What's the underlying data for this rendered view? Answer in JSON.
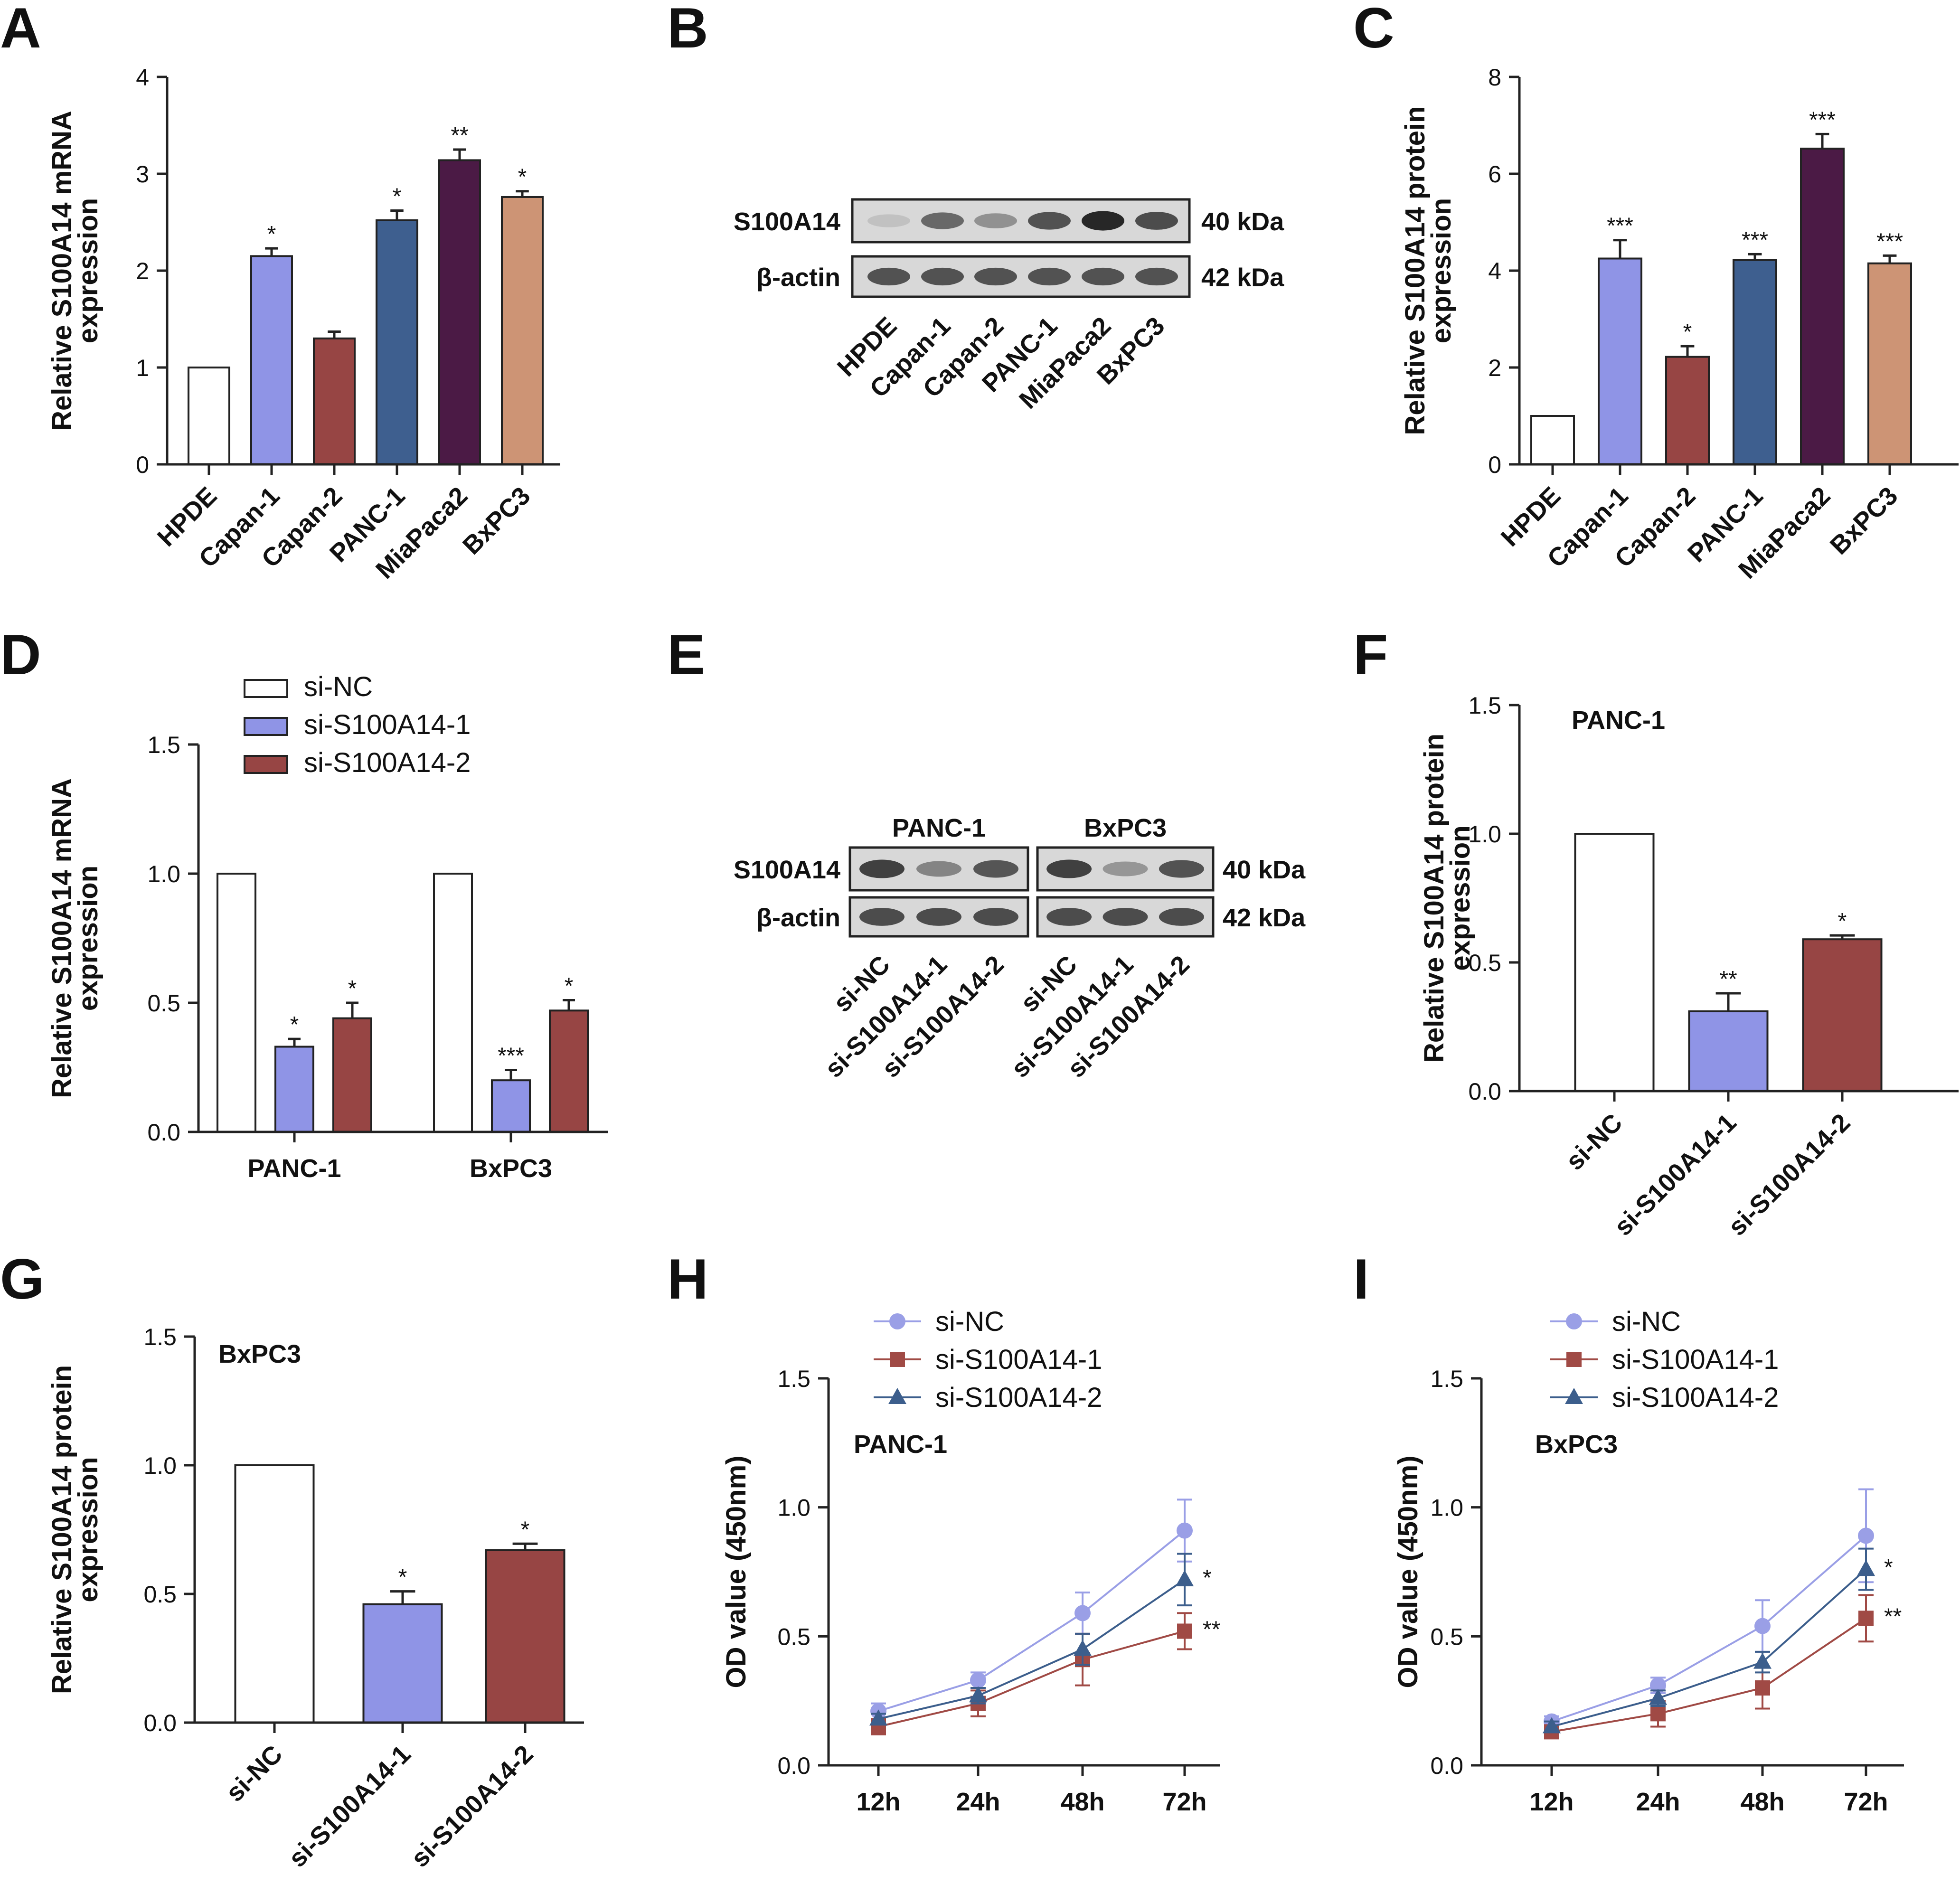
{
  "colors": {
    "white_bar": "#ffffff",
    "lavender": "#8f94e6",
    "brick": "#974544",
    "steel": "#3e5f8f",
    "plum": "#4b1a45",
    "tan": "#cd9475",
    "line_nc": "#9a9fe6",
    "line_1": "#a04a45",
    "line_2": "#3c5e8c",
    "band_dark": "#1e1e1e"
  },
  "chart_data": [
    {
      "panel": "A",
      "type": "bar",
      "ylabel": [
        "Relative S100A14 mRNA",
        "expression"
      ],
      "ylim": [
        0,
        4
      ],
      "yticks": [
        "0",
        "1",
        "2",
        "3",
        "4"
      ],
      "categories": [
        "HPDE",
        "Capan-1",
        "Capan-2",
        "PANC-1",
        "MiaPaca2",
        "BxPC3"
      ],
      "values": [
        1.0,
        2.15,
        1.3,
        2.52,
        3.14,
        2.76
      ],
      "errors": [
        0,
        0.08,
        0.07,
        0.1,
        0.11,
        0.06
      ],
      "sig": [
        "",
        "*",
        "",
        "*",
        "**",
        "*"
      ],
      "bar_colors": [
        "white_bar",
        "lavender",
        "brick",
        "steel",
        "plum",
        "tan"
      ]
    },
    {
      "panel": "C",
      "type": "bar",
      "ylabel": [
        "Relative S100A14 protein",
        "expression"
      ],
      "ylim": [
        0,
        8
      ],
      "yticks": [
        "0",
        "2",
        "4",
        "6",
        "8"
      ],
      "categories": [
        "HPDE",
        "Capan-1",
        "Capan-2",
        "PANC-1",
        "MiaPaca2",
        "BxPC3"
      ],
      "values": [
        1.0,
        4.25,
        2.22,
        4.22,
        6.52,
        4.15
      ],
      "errors": [
        0,
        0.38,
        0.22,
        0.12,
        0.3,
        0.16
      ],
      "sig": [
        "",
        "***",
        "*",
        "***",
        "***",
        "***"
      ],
      "bar_colors": [
        "white_bar",
        "lavender",
        "brick",
        "steel",
        "plum",
        "tan"
      ]
    },
    {
      "panel": "D",
      "type": "bar",
      "ylabel": [
        "Relative S100A14 mRNA",
        "expression"
      ],
      "ylim": [
        0,
        1.5
      ],
      "yticks": [
        "0.0",
        "0.5",
        "1.0",
        "1.5"
      ],
      "categories": [
        "PANC-1",
        "BxPC3"
      ],
      "legend": [
        "si-NC",
        "si-S100A14-1",
        "si-S100A14-2"
      ],
      "series": [
        {
          "name": "si-NC",
          "values": [
            1.0,
            1.0
          ],
          "errors": [
            0,
            0
          ],
          "sig": [
            "",
            ""
          ],
          "color": "white_bar"
        },
        {
          "name": "si-S100A14-1",
          "values": [
            0.33,
            0.2
          ],
          "errors": [
            0.03,
            0.04
          ],
          "sig": [
            "*",
            "***"
          ],
          "color": "lavender"
        },
        {
          "name": "si-S100A14-2",
          "values": [
            0.44,
            0.47
          ],
          "errors": [
            0.06,
            0.04
          ],
          "sig": [
            "*",
            "*"
          ],
          "color": "brick"
        }
      ]
    },
    {
      "panel": "F",
      "type": "bar",
      "title": "PANC-1",
      "ylabel": [
        "Relative S100A14 protein",
        "expression"
      ],
      "ylim": [
        0,
        1.5
      ],
      "yticks": [
        "0.0",
        "0.5",
        "1.0",
        "1.5"
      ],
      "categories": [
        "si-NC",
        "si-S100A14-1",
        "si-S100A14-2"
      ],
      "values": [
        1.0,
        0.31,
        0.59
      ],
      "errors": [
        0,
        0.07,
        0.015
      ],
      "sig": [
        "",
        "**",
        "*"
      ],
      "bar_colors": [
        "white_bar",
        "lavender",
        "brick"
      ]
    },
    {
      "panel": "G",
      "type": "bar",
      "title": "BxPC3",
      "ylabel": [
        "Relative S100A14 protein",
        "expression"
      ],
      "ylim": [
        0,
        1.5
      ],
      "yticks": [
        "0.0",
        "0.5",
        "1.0",
        "1.5"
      ],
      "categories": [
        "si-NC",
        "si-S100A14-1",
        "si-S100A14-2"
      ],
      "values": [
        1.0,
        0.46,
        0.67
      ],
      "errors": [
        0,
        0.05,
        0.025
      ],
      "sig": [
        "",
        "*",
        "*"
      ],
      "bar_colors": [
        "white_bar",
        "lavender",
        "brick"
      ]
    },
    {
      "panel": "H",
      "type": "line",
      "title": "PANC-1",
      "ylabel": [
        "OD value (450nm)"
      ],
      "ylim": [
        0,
        1.5
      ],
      "yticks": [
        "0.0",
        "0.5",
        "1.0",
        "1.5"
      ],
      "categories": [
        "12h",
        "24h",
        "48h",
        "72h"
      ],
      "series": [
        {
          "name": "si-NC",
          "marker": "circle",
          "color": "line_nc",
          "values": [
            0.21,
            0.33,
            0.59,
            0.91
          ],
          "errors": [
            0.03,
            0.03,
            0.08,
            0.12
          ],
          "end_sig": ""
        },
        {
          "name": "si-S100A14-1",
          "marker": "square",
          "color": "line_1",
          "values": [
            0.15,
            0.24,
            0.41,
            0.52
          ],
          "errors": [
            0.03,
            0.05,
            0.1,
            0.07
          ],
          "end_sig": "**"
        },
        {
          "name": "si-S100A14-2",
          "marker": "triangle",
          "color": "line_2",
          "values": [
            0.18,
            0.27,
            0.45,
            0.72
          ],
          "errors": [
            0.02,
            0.03,
            0.06,
            0.1
          ],
          "end_sig": "*"
        }
      ]
    },
    {
      "panel": "I",
      "type": "line",
      "title": "BxPC3",
      "ylabel": [
        "OD value (450nm)"
      ],
      "ylim": [
        0,
        1.5
      ],
      "yticks": [
        "0.0",
        "0.5",
        "1.0",
        "1.5"
      ],
      "categories": [
        "12h",
        "24h",
        "48h",
        "72h"
      ],
      "series": [
        {
          "name": "si-NC",
          "marker": "circle",
          "color": "line_nc",
          "values": [
            0.17,
            0.31,
            0.54,
            0.89
          ],
          "errors": [
            0.02,
            0.03,
            0.1,
            0.18
          ],
          "end_sig": ""
        },
        {
          "name": "si-S100A14-1",
          "marker": "square",
          "color": "line_1",
          "values": [
            0.13,
            0.2,
            0.3,
            0.57
          ],
          "errors": [
            0.02,
            0.05,
            0.08,
            0.09
          ],
          "end_sig": "**"
        },
        {
          "name": "si-S100A14-2",
          "marker": "triangle",
          "color": "line_2",
          "values": [
            0.15,
            0.26,
            0.4,
            0.76
          ],
          "errors": [
            0.02,
            0.03,
            0.04,
            0.08
          ],
          "end_sig": "*"
        }
      ]
    }
  ],
  "blots": [
    {
      "panel": "B",
      "rows": [
        {
          "label": "S100A14",
          "kda": "40 kDa",
          "intensities": [
            0.12,
            0.6,
            0.38,
            0.72,
            0.95,
            0.75
          ]
        },
        {
          "label": "β-actin",
          "kda": "42 kDa",
          "intensities": [
            0.72,
            0.72,
            0.72,
            0.72,
            0.72,
            0.72
          ]
        }
      ],
      "lanes": [
        "HPDE",
        "Capan-1",
        "Capan-2",
        "PANC-1",
        "MiaPaca2",
        "BxPC3"
      ]
    },
    {
      "panel": "E",
      "groups": [
        "PANC-1",
        "BxPC3"
      ],
      "rows": [
        {
          "label": "S100A14",
          "kda": "40 kDa",
          "intensities": [
            [
              0.82,
              0.45,
              0.7
            ],
            [
              0.82,
              0.35,
              0.72
            ]
          ]
        },
        {
          "label": "β-actin",
          "kda": "42 kDa",
          "intensities": [
            [
              0.75,
              0.75,
              0.75
            ],
            [
              0.75,
              0.75,
              0.75
            ]
          ]
        }
      ],
      "lanes": [
        [
          "si-NC",
          "si-S100A14-1",
          "si-S100A14-2"
        ],
        [
          "si-NC",
          "si-S100A14-1",
          "si-S100A14-2"
        ]
      ]
    }
  ],
  "panel_labels": [
    "A",
    "B",
    "C",
    "D",
    "E",
    "F",
    "G",
    "H",
    "I"
  ]
}
